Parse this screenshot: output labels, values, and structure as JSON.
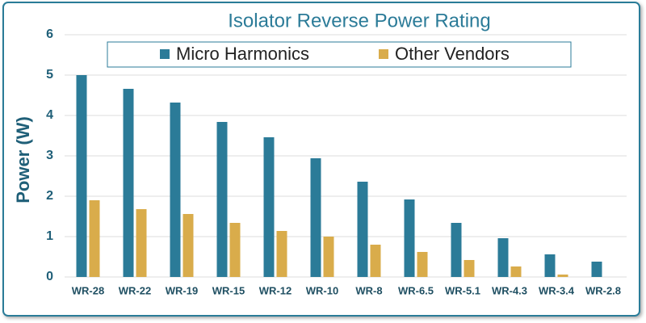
{
  "chart_data": {
    "type": "bar",
    "title": "Isolator Reverse Power Rating",
    "y_label": "Power (W)",
    "categories": [
      "WR-28",
      "WR-22",
      "WR-19",
      "WR-15",
      "WR-12",
      "WR-10",
      "WR-8",
      "WR-6.5",
      "WR-5.1",
      "WR-4.3",
      "WR-3.4",
      "WR-2.8"
    ],
    "series": [
      {
        "name": "Micro Harmonics",
        "color": "#2b7b98",
        "values": [
          5.0,
          4.66,
          4.32,
          3.84,
          3.46,
          2.94,
          2.36,
          1.92,
          1.34,
          0.96,
          0.56,
          0.38
        ]
      },
      {
        "name": "Other Vendors",
        "color": "#d9ac4b",
        "values": [
          1.9,
          1.68,
          1.56,
          1.34,
          1.14,
          1.0,
          0.8,
          0.62,
          0.42,
          0.26,
          0.06,
          null
        ]
      }
    ],
    "ylim": [
      0,
      6
    ],
    "yticks": [
      0,
      1,
      2,
      3,
      4,
      5,
      6
    ],
    "grid": true
  }
}
